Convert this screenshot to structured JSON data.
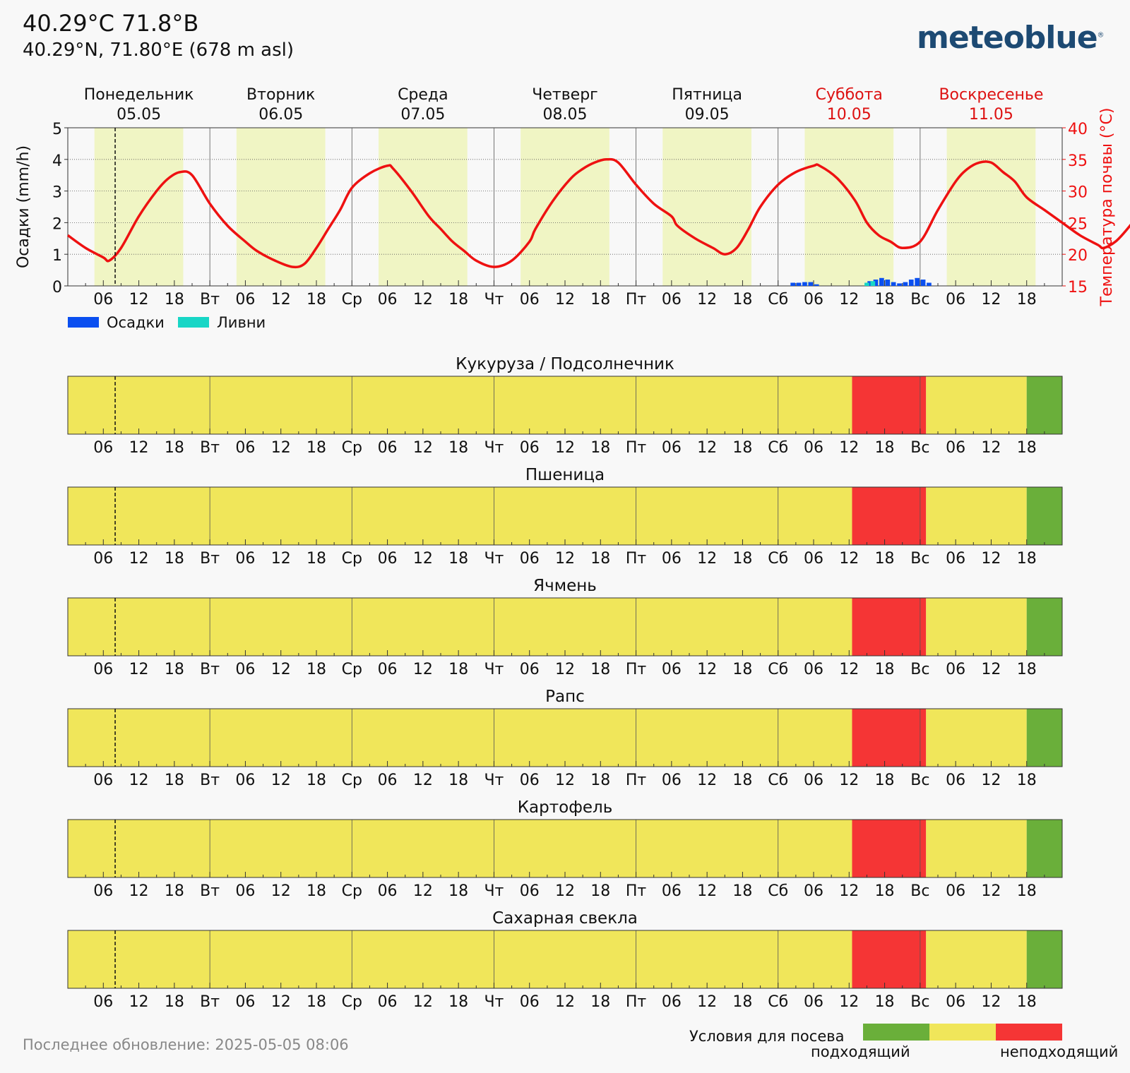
{
  "header": {
    "title": "40.29°C 71.8°B",
    "subtitle": "40.29°N, 71.80°E (678 m asl)",
    "logo": "meteoblue",
    "logo_mark": "®"
  },
  "footer": {
    "last_update": "Последнее обновление: 2025-05-05 08:06"
  },
  "sowing_legend": {
    "title": "Условия для посева",
    "good_label": "подходящий",
    "bad_label": "неподходящий",
    "colors": [
      "#6aaf3a",
      "#f0e65a",
      "#f53535"
    ]
  },
  "colors": {
    "temperature": "#ee1111",
    "precipitation": "#0a4ff0",
    "showers": "#18d6c6",
    "daylight": "#f0f5c4",
    "suitable": "#6aaf3a",
    "moderate": "#f0e65a",
    "unsuitable": "#f53535",
    "weekend_text": "#dd1111"
  },
  "chart_data": [
    {
      "type": "line",
      "days": [
        {
          "name": "Понедельник",
          "date": "05.05",
          "weekend": false
        },
        {
          "name": "Вторник",
          "date": "06.05",
          "weekend": false
        },
        {
          "name": "Среда",
          "date": "07.05",
          "weekend": false
        },
        {
          "name": "Четверг",
          "date": "08.05",
          "weekend": false
        },
        {
          "name": "Пятница",
          "date": "09.05",
          "weekend": false
        },
        {
          "name": "Суббота",
          "date": "10.05",
          "weekend": true
        },
        {
          "name": "Воскресенье",
          "date": "11.05",
          "weekend": true
        }
      ],
      "x_tick_labels": [
        "06",
        "12",
        "18",
        "Вт",
        "06",
        "12",
        "18",
        "Ср",
        "06",
        "12",
        "18",
        "Чт",
        "06",
        "12",
        "18",
        "Пт",
        "06",
        "12",
        "18",
        "Сб",
        "06",
        "12",
        "18",
        "Вс",
        "06",
        "12",
        "18"
      ],
      "y_left_label": "Осадки (mm/h)",
      "y_left_range": [
        0,
        5
      ],
      "y_left_ticks": [
        0,
        1,
        2,
        3,
        4,
        5
      ],
      "y_right_label": "Температура почвы (°C)",
      "y_right_range": [
        15,
        40
      ],
      "y_right_ticks": [
        15,
        20,
        25,
        30,
        35,
        40
      ],
      "grid": true,
      "current_time_hour": 8,
      "daylight_hours": [
        4.5,
        19.5
      ],
      "legend": [
        {
          "name": "Осадки",
          "color": "#0a4ff0"
        },
        {
          "name": "Ливни",
          "color": "#18d6c6"
        }
      ],
      "series": [
        {
          "name": "Температура почвы",
          "x_hours": [
            0,
            3,
            6,
            7,
            9,
            12,
            15,
            17,
            19,
            21,
            24,
            27,
            30,
            32,
            35,
            38,
            40,
            42,
            44,
            46,
            48,
            51,
            54,
            55,
            58,
            61,
            63,
            65,
            67,
            69,
            72,
            75,
            78,
            79,
            82,
            85,
            87,
            89,
            91,
            93,
            96,
            99,
            102,
            103,
            106,
            109,
            111,
            113,
            115,
            117,
            120,
            123,
            126,
            127,
            130,
            133,
            135,
            137,
            139,
            141,
            144,
            147,
            150,
            152,
            154,
            156,
            158,
            160,
            162,
            165,
            168,
            171,
            174,
            175,
            177,
            179,
            181,
            183,
            185,
            187,
            189,
            191,
            193,
            195,
            197,
            199,
            201,
            204,
            207,
            210,
            213
          ],
          "y": [
            23,
            21,
            19.5,
            19,
            21,
            26,
            30,
            32,
            33,
            32.5,
            28,
            24.5,
            22,
            20.5,
            19,
            18,
            18.5,
            21,
            24,
            27,
            30.5,
            32.8,
            34,
            33.5,
            30,
            26,
            24,
            22,
            20.5,
            19,
            18,
            19,
            22,
            24,
            28.5,
            32,
            33.5,
            34.5,
            35,
            34.5,
            31,
            28,
            26,
            24.5,
            22.5,
            21,
            20,
            21,
            24,
            27.5,
            31,
            33,
            34,
            34,
            32,
            28.5,
            25,
            23,
            22,
            21,
            22,
            27,
            31.5,
            33.5,
            34.5,
            34.5,
            33,
            31.5,
            29,
            27,
            25,
            23,
            21.5,
            21,
            22,
            24,
            26.5,
            29.5,
            31.5,
            33,
            34,
            34.5,
            34.5,
            33.5,
            31.8,
            29.6,
            27.7,
            26.3,
            25.3,
            24.4,
            23.7
          ]
        },
        {
          "name": "Осадки",
          "x_hours": [
            122.5,
            123.5,
            124.5,
            125.5,
            126.5,
            135.5,
            136.5,
            137.5,
            138.5,
            139.5,
            140.5,
            141.5,
            142.5,
            143.5,
            144.5,
            145.5
          ],
          "values": [
            0.1,
            0.1,
            0.12,
            0.12,
            0.05,
            0.15,
            0.2,
            0.25,
            0.2,
            0.12,
            0.08,
            0.12,
            0.2,
            0.25,
            0.2,
            0.1
          ]
        },
        {
          "name": "Ливни",
          "x_hours": [
            135,
            136
          ],
          "values": [
            0.1,
            0.15
          ]
        }
      ]
    },
    {
      "type": "heatmap",
      "value_levels": [
        "suitable",
        "moderate",
        "unsuitable"
      ],
      "x_tick_labels": [
        "06",
        "12",
        "18",
        "Вт",
        "06",
        "12",
        "18",
        "Ср",
        "06",
        "12",
        "18",
        "Чт",
        "06",
        "12",
        "18",
        "Пт",
        "06",
        "12",
        "18",
        "Сб",
        "06",
        "12",
        "18",
        "Вс",
        "06",
        "12",
        "18"
      ],
      "crops": [
        {
          "name": "Кукуруза / Подсолнечник",
          "segments": [
            {
              "from_hour": 0,
              "to_hour": 132.5,
              "level": "moderate"
            },
            {
              "from_hour": 132.5,
              "to_hour": 145,
              "level": "unsuitable"
            },
            {
              "from_hour": 145,
              "to_hour": 162,
              "level": "moderate"
            },
            {
              "from_hour": 162,
              "to_hour": 168,
              "level": "suitable"
            }
          ]
        },
        {
          "name": "Пшеница",
          "segments": [
            {
              "from_hour": 0,
              "to_hour": 132.5,
              "level": "moderate"
            },
            {
              "from_hour": 132.5,
              "to_hour": 145,
              "level": "unsuitable"
            },
            {
              "from_hour": 145,
              "to_hour": 162,
              "level": "moderate"
            },
            {
              "from_hour": 162,
              "to_hour": 168,
              "level": "suitable"
            }
          ]
        },
        {
          "name": "Ячмень",
          "segments": [
            {
              "from_hour": 0,
              "to_hour": 132.5,
              "level": "moderate"
            },
            {
              "from_hour": 132.5,
              "to_hour": 145,
              "level": "unsuitable"
            },
            {
              "from_hour": 145,
              "to_hour": 162,
              "level": "moderate"
            },
            {
              "from_hour": 162,
              "to_hour": 168,
              "level": "suitable"
            }
          ]
        },
        {
          "name": "Рапс",
          "segments": [
            {
              "from_hour": 0,
              "to_hour": 132.5,
              "level": "moderate"
            },
            {
              "from_hour": 132.5,
              "to_hour": 145,
              "level": "unsuitable"
            },
            {
              "from_hour": 145,
              "to_hour": 162,
              "level": "moderate"
            },
            {
              "from_hour": 162,
              "to_hour": 168,
              "level": "suitable"
            }
          ]
        },
        {
          "name": "Картофель",
          "segments": [
            {
              "from_hour": 0,
              "to_hour": 132.5,
              "level": "moderate"
            },
            {
              "from_hour": 132.5,
              "to_hour": 145,
              "level": "unsuitable"
            },
            {
              "from_hour": 145,
              "to_hour": 162,
              "level": "moderate"
            },
            {
              "from_hour": 162,
              "to_hour": 168,
              "level": "suitable"
            }
          ]
        },
        {
          "name": "Сахарная свекла",
          "segments": [
            {
              "from_hour": 0,
              "to_hour": 132.5,
              "level": "moderate"
            },
            {
              "from_hour": 132.5,
              "to_hour": 145,
              "level": "unsuitable"
            },
            {
              "from_hour": 145,
              "to_hour": 162,
              "level": "moderate"
            },
            {
              "from_hour": 162,
              "to_hour": 168,
              "level": "suitable"
            }
          ]
        }
      ]
    }
  ]
}
